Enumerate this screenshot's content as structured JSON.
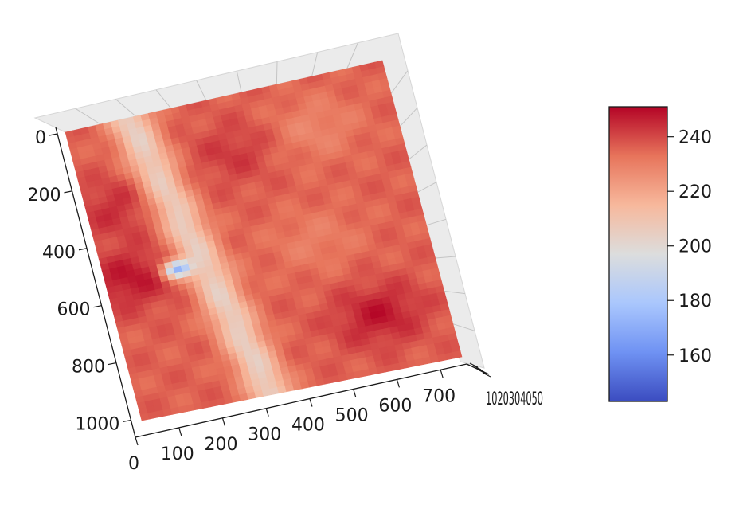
{
  "chart_data": {
    "type": "heatmap",
    "title": "",
    "xlabel": "",
    "ylabel": "",
    "zlabel": "",
    "x_ticks": [
      0,
      100,
      200,
      300,
      400,
      500,
      600,
      700
    ],
    "y_ticks": [
      0,
      200,
      400,
      600,
      800,
      1000
    ],
    "z_tick_labels_overlapping": "1020304050",
    "xlim": [
      0,
      760
    ],
    "ylim": [
      0,
      1060
    ],
    "colorbar": {
      "ticks": [
        160,
        180,
        200,
        220,
        240
      ],
      "range": [
        143,
        251
      ],
      "colormap": "coolwarm"
    },
    "surface": {
      "background_value": 236,
      "ridge": {
        "description": "low-value band running top to bottom",
        "x_at_y0": 150,
        "x_at_y1060": 310,
        "min_value_on_ridge": 205
      },
      "minimum": {
        "x": 170,
        "y": 560,
        "value": 145
      },
      "high_spots": [
        {
          "x": 60,
          "y": 560,
          "value": 248
        },
        {
          "x": 600,
          "y": 860,
          "value": 248
        },
        {
          "x": 70,
          "y": 300,
          "value": 244
        },
        {
          "x": 380,
          "y": 200,
          "value": 243
        }
      ],
      "low_spots": [
        {
          "x": 560,
          "y": 180,
          "value": 228
        },
        {
          "x": 500,
          "y": 560,
          "value": 230
        }
      ]
    },
    "colors": {
      "cmap_stops": [
        "#3b4cc0",
        "#6f92f3",
        "#aac7fd",
        "#dcdddd",
        "#f7b89c",
        "#e7745b",
        "#b40426"
      ],
      "pane": "#ebebeb",
      "grid": "#c4c4c4",
      "axis": "#1a1a1a"
    }
  }
}
